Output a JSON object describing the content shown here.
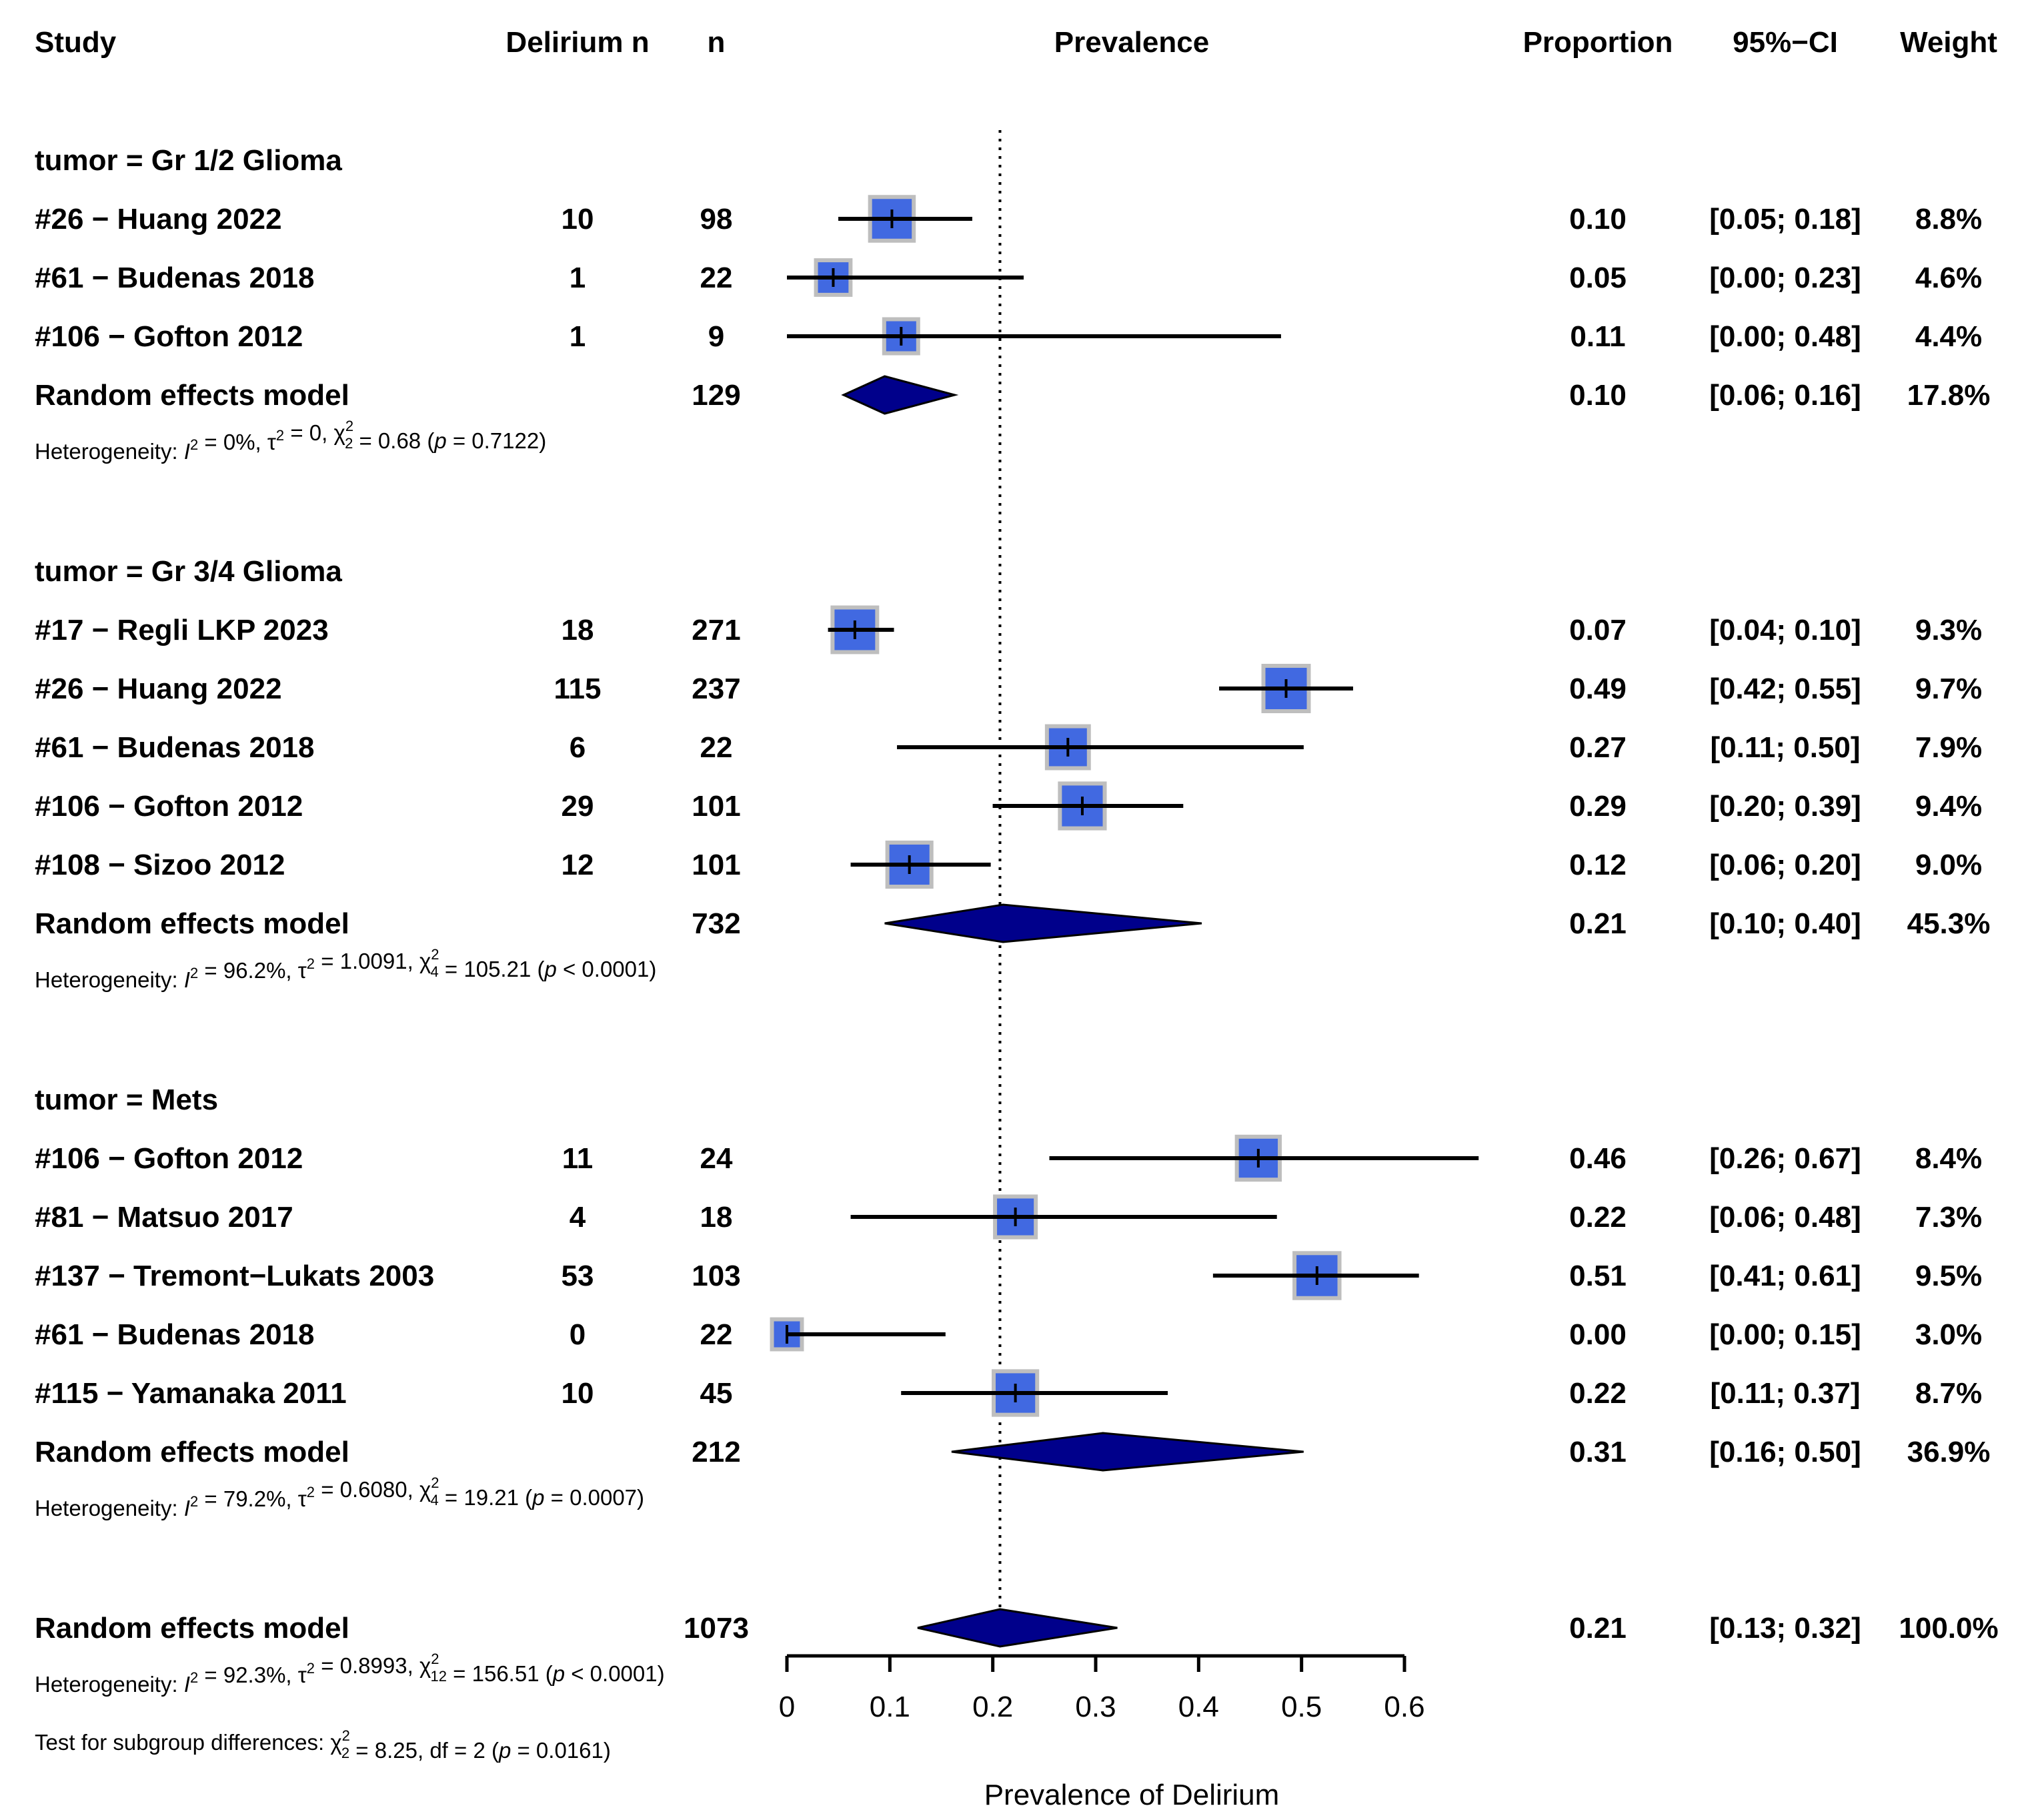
{
  "headers": {
    "study": "Study",
    "events": "Delirium n",
    "n": "n",
    "plot": "Prevalence",
    "proportion": "Proportion",
    "ci": "95%−CI",
    "weight": "Weight"
  },
  "chart_data": {
    "type": "forest",
    "xlabel": "Prevalence of Delirium",
    "xlim": [
      0,
      0.6
    ],
    "ticks": [
      0,
      0.1,
      0.2,
      0.3,
      0.4,
      0.5,
      0.6
    ],
    "tick_labels": [
      "0",
      "0.1",
      "0.2",
      "0.3",
      "0.4",
      "0.5",
      "0.6"
    ],
    "reference_line": 0.207,
    "groups": [
      {
        "label": "tumor = Gr 1/2 Glioma",
        "studies": [
          {
            "study": "#26 − Huang 2022",
            "events": "10",
            "n": "98",
            "proportion": 0.102,
            "lower": 0.05,
            "upper": 0.18,
            "weight": 8.8,
            "prop_text": "0.10",
            "ci_text": "[0.05; 0.18]",
            "weight_text": "8.8%"
          },
          {
            "study": "#61 − Budenas 2018",
            "events": "1",
            "n": "22",
            "proportion": 0.045,
            "lower": 0.0,
            "upper": 0.23,
            "weight": 4.6,
            "prop_text": "0.05",
            "ci_text": "[0.00; 0.23]",
            "weight_text": "4.6%"
          },
          {
            "study": "#106 − Gofton 2012",
            "events": "1",
            "n": "9",
            "proportion": 0.111,
            "lower": 0.0,
            "upper": 0.48,
            "weight": 4.4,
            "prop_text": "0.11",
            "ci_text": "[0.00; 0.48]",
            "weight_text": "4.4%"
          }
        ],
        "model": {
          "label": "Random effects model",
          "n": "129",
          "proportion": 0.095,
          "lower": 0.055,
          "upper": 0.163,
          "prop_text": "0.10",
          "ci_text": "[0.06; 0.16]",
          "weight_text": "17.8%"
        },
        "heterogeneity": "Heterogeneity: I² = 0%, τ² = 0, χ²₂ = 0.68 (p = 0.7122)"
      },
      {
        "label": "tumor = Gr 3/4 Glioma",
        "studies": [
          {
            "study": "#17 − Regli LKP 2023",
            "events": "18",
            "n": "271",
            "proportion": 0.066,
            "lower": 0.04,
            "upper": 0.104,
            "weight": 9.3,
            "prop_text": "0.07",
            "ci_text": "[0.04; 0.10]",
            "weight_text": "9.3%"
          },
          {
            "study": "#26 − Huang 2022",
            "events": "115",
            "n": "237",
            "proportion": 0.485,
            "lower": 0.42,
            "upper": 0.55,
            "weight": 9.7,
            "prop_text": "0.49",
            "ci_text": "[0.42; 0.55]",
            "weight_text": "9.7%"
          },
          {
            "study": "#61 − Budenas 2018",
            "events": "6",
            "n": "22",
            "proportion": 0.273,
            "lower": 0.107,
            "upper": 0.502,
            "weight": 7.9,
            "prop_text": "0.27",
            "ci_text": "[0.11; 0.50]",
            "weight_text": "7.9%"
          },
          {
            "study": "#106 − Gofton 2012",
            "events": "29",
            "n": "101",
            "proportion": 0.287,
            "lower": 0.2,
            "upper": 0.385,
            "weight": 9.4,
            "prop_text": "0.29",
            "ci_text": "[0.20; 0.39]",
            "weight_text": "9.4%"
          },
          {
            "study": "#108 − Sizoo 2012",
            "events": "12",
            "n": "101",
            "proportion": 0.119,
            "lower": 0.062,
            "upper": 0.198,
            "weight": 9.0,
            "prop_text": "0.12",
            "ci_text": "[0.06; 0.20]",
            "weight_text": "9.0%"
          }
        ],
        "model": {
          "label": "Random effects model",
          "n": "732",
          "proportion": 0.21,
          "lower": 0.095,
          "upper": 0.403,
          "prop_text": "0.21",
          "ci_text": "[0.10; 0.40]",
          "weight_text": "45.3%"
        },
        "heterogeneity": "Heterogeneity: I² = 96.2%, τ² = 1.0091, χ²₄ = 105.21 (p < 0.0001)"
      },
      {
        "label": "tumor = Mets",
        "studies": [
          {
            "study": "#106 − Gofton 2012",
            "events": "11",
            "n": "24",
            "proportion": 0.458,
            "lower": 0.255,
            "upper": 0.672,
            "weight": 8.4,
            "prop_text": "0.46",
            "ci_text": "[0.26; 0.67]",
            "weight_text": "8.4%"
          },
          {
            "study": "#81 − Matsuo 2017",
            "events": "4",
            "n": "18",
            "proportion": 0.222,
            "lower": 0.062,
            "upper": 0.476,
            "weight": 7.3,
            "prop_text": "0.22",
            "ci_text": "[0.06; 0.48]",
            "weight_text": "7.3%"
          },
          {
            "study": "#137 − Tremont−Lukats 2003",
            "events": "53",
            "n": "103",
            "proportion": 0.515,
            "lower": 0.414,
            "upper": 0.614,
            "weight": 9.5,
            "prop_text": "0.51",
            "ci_text": "[0.41; 0.61]",
            "weight_text": "9.5%"
          },
          {
            "study": "#61 − Budenas 2018",
            "events": "0",
            "n": "22",
            "proportion": 0.0,
            "lower": 0.0,
            "upper": 0.154,
            "weight": 3.0,
            "prop_text": "0.00",
            "ci_text": "[0.00; 0.15]",
            "weight_text": "3.0%"
          },
          {
            "study": "#115 − Yamanaka 2011",
            "events": "10",
            "n": "45",
            "proportion": 0.222,
            "lower": 0.111,
            "upper": 0.37,
            "weight": 8.7,
            "prop_text": "0.22",
            "ci_text": "[0.11; 0.37]",
            "weight_text": "8.7%"
          }
        ],
        "model": {
          "label": "Random effects model",
          "n": "212",
          "proportion": 0.307,
          "lower": 0.16,
          "upper": 0.502,
          "prop_text": "0.31",
          "ci_text": "[0.16; 0.50]",
          "weight_text": "36.9%"
        },
        "heterogeneity": "Heterogeneity: I² = 79.2%, τ² = 0.6080, χ²₄ = 19.21 (p = 0.0007)"
      }
    ],
    "overall": {
      "label": "Random effects model",
      "n": "1073",
      "proportion": 0.207,
      "lower": 0.127,
      "upper": 0.321,
      "prop_text": "0.21",
      "ci_text": "[0.13; 0.32]",
      "weight_text": "100.0%",
      "heterogeneity": "Heterogeneity: I² = 92.3%, τ² = 0.8993, χ²₁₂ = 156.51 (p < 0.0001)",
      "subgroup_test": "Test for subgroup differences: χ²₂ = 8.25, df = 2 (p = 0.0161)"
    }
  },
  "colors": {
    "square_fill": "#4169E1",
    "square_border": "#BEBEBE",
    "diamond_fill": "#00008B",
    "line": "#000000"
  }
}
